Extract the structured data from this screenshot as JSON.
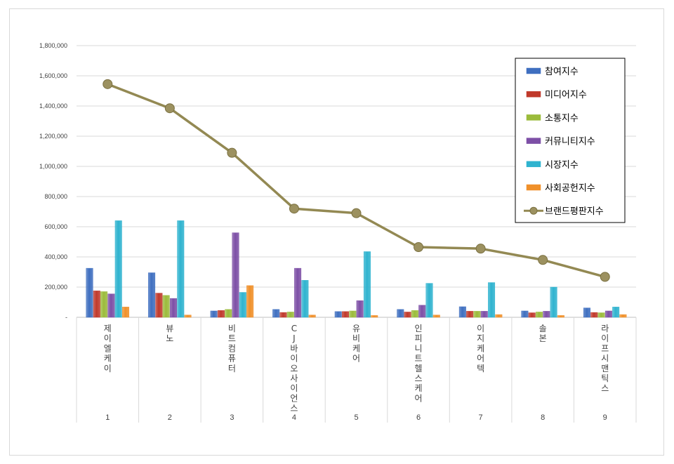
{
  "chart_data": {
    "type": "bar",
    "title": "",
    "xlabel": "",
    "ylabel": "",
    "ylim": [
      0,
      1800000
    ],
    "yticks": [
      "-",
      "200,000",
      "400,000",
      "600,000",
      "800,000",
      "1,000,000",
      "1,200,000",
      "1,400,000",
      "1,600,000",
      "1,800,000"
    ],
    "ytick_values": [
      0,
      200000,
      400000,
      600000,
      800000,
      1000000,
      1200000,
      1400000,
      1600000,
      1800000
    ],
    "grid": true,
    "legend_position": "top-right",
    "categories": [
      {
        "rank": "1",
        "name": "제이엘케이"
      },
      {
        "rank": "2",
        "name": "뷰노"
      },
      {
        "rank": "3",
        "name": "비트컴퓨터"
      },
      {
        "rank": "4",
        "name": "CJ바이오사이언스"
      },
      {
        "rank": "5",
        "name": "유비케어"
      },
      {
        "rank": "6",
        "name": "인피니트헬스케어"
      },
      {
        "rank": "7",
        "name": "이지케어텍"
      },
      {
        "rank": "8",
        "name": "솔본"
      },
      {
        "rank": "9",
        "name": "라이프시맨틱스"
      }
    ],
    "series": [
      {
        "name": "참여지수",
        "kind": "bar",
        "color": "#3f6fc0",
        "values": [
          325000,
          295000,
          42000,
          52000,
          38000,
          52000,
          70000,
          42000,
          62000
        ]
      },
      {
        "name": "미디어지수",
        "kind": "bar",
        "color": "#c0392b",
        "values": [
          175000,
          160000,
          45000,
          32000,
          38000,
          35000,
          40000,
          30000,
          32000
        ]
      },
      {
        "name": "소통지수",
        "kind": "bar",
        "color": "#9bbb3b",
        "values": [
          170000,
          145000,
          52000,
          35000,
          42000,
          45000,
          40000,
          35000,
          30000
        ]
      },
      {
        "name": "커뮤니티지수",
        "kind": "bar",
        "color": "#7d4fa6",
        "values": [
          155000,
          125000,
          560000,
          325000,
          110000,
          80000,
          40000,
          40000,
          42000
        ]
      },
      {
        "name": "시장지수",
        "kind": "bar",
        "color": "#2fb3cf",
        "values": [
          640000,
          640000,
          165000,
          245000,
          435000,
          225000,
          230000,
          200000,
          68000
        ]
      },
      {
        "name": "사회공헌지수",
        "kind": "bar",
        "color": "#f0902a",
        "values": [
          68000,
          15000,
          210000,
          15000,
          12000,
          15000,
          18000,
          12000,
          18000
        ]
      },
      {
        "name": "브랜드평판지수",
        "kind": "line",
        "color": "#938953",
        "values": [
          1545000,
          1385000,
          1090000,
          720000,
          690000,
          465000,
          455000,
          380000,
          268000
        ]
      }
    ]
  }
}
